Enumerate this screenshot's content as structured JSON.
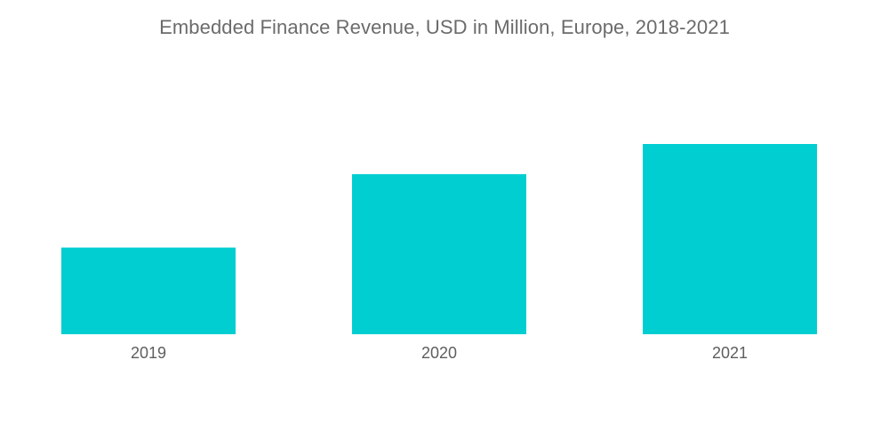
{
  "chart_data": {
    "type": "bar",
    "title": "Embedded Finance Revenue, USD in Million, Europe, 2018-2021",
    "categories": [
      "2019",
      "2020",
      "2021"
    ],
    "values": [
      46,
      85,
      101
    ],
    "xlabel": "",
    "ylabel": "",
    "ylim": [
      0,
      101
    ],
    "grid": false,
    "legend": "none",
    "colors": {
      "bar": "#00ced1",
      "title": "#6b6b6b",
      "tick_label": "#5e5e5e"
    }
  }
}
